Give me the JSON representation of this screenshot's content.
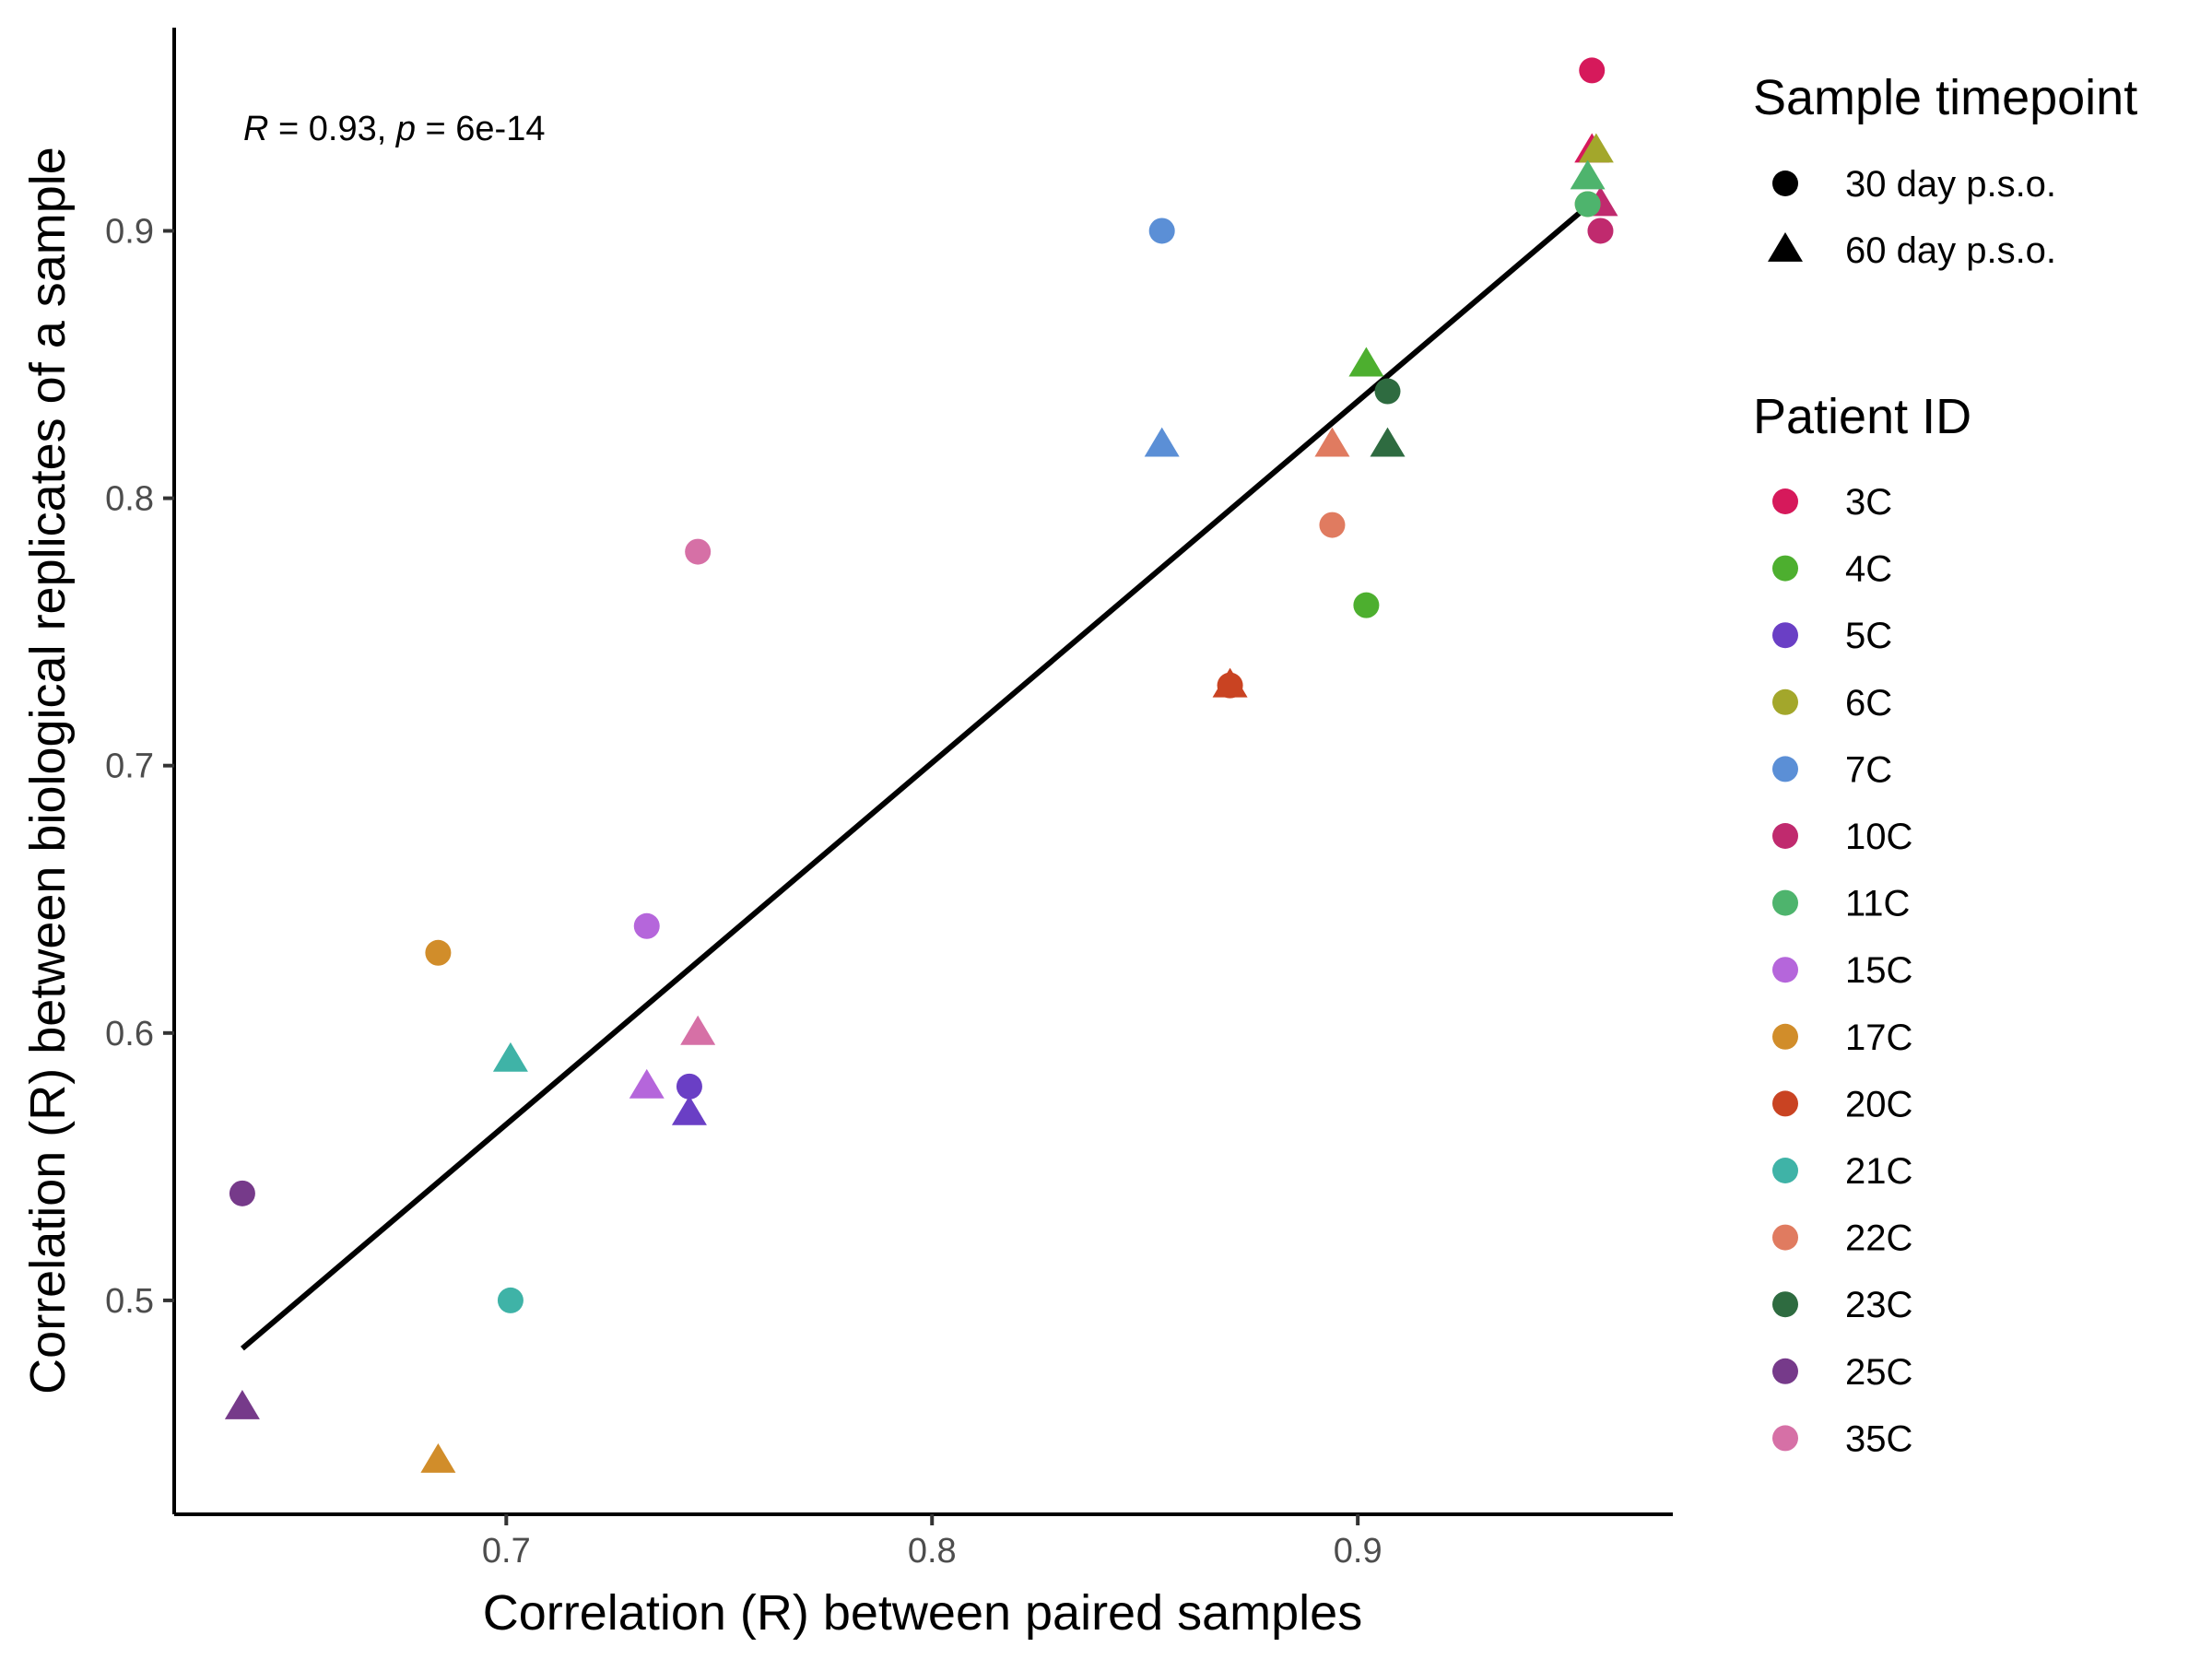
{
  "chart_data": {
    "type": "scatter",
    "title": "",
    "xlabel": "Correlation (R) between paired samples",
    "ylabel": "Correlation (R) between biological replicates of a sample",
    "xlim": [
      0.622,
      0.974
    ],
    "ylim": [
      0.42,
      0.976
    ],
    "x_ticks": [
      0.7,
      0.8,
      0.9
    ],
    "x_tick_labels": [
      "0.7",
      "0.8",
      "0.9"
    ],
    "y_ticks": [
      0.5,
      0.6,
      0.7,
      0.8,
      0.9
    ],
    "y_tick_labels": [
      "0.5",
      "0.6",
      "0.7",
      "0.8",
      "0.9"
    ],
    "grid": false,
    "legend_position": "right",
    "annotation": {
      "r_symbol": "R",
      "r_text": " = 0.93, ",
      "p_symbol": "p",
      "p_text": " = 6e-14"
    },
    "regression_line": {
      "x": [
        0.638,
        0.956
      ],
      "y": [
        0.482,
        0.912
      ]
    },
    "shape_legend": {
      "title": "Sample timepoint",
      "items": [
        {
          "label": "30 day p.s.o.",
          "shape": "circle"
        },
        {
          "label": "60 day p.s.o.",
          "shape": "triangle"
        }
      ]
    },
    "color_legend": {
      "title": "Patient ID",
      "items": [
        {
          "label": "3C",
          "color": "#D6195B"
        },
        {
          "label": "4C",
          "color": "#4DAF2F"
        },
        {
          "label": "5C",
          "color": "#6A3FC5"
        },
        {
          "label": "6C",
          "color": "#A3A72B"
        },
        {
          "label": "7C",
          "color": "#5B8FD6"
        },
        {
          "label": "10C",
          "color": "#C02A6E"
        },
        {
          "label": "11C",
          "color": "#4EB46D"
        },
        {
          "label": "15C",
          "color": "#B566DB"
        },
        {
          "label": "17C",
          "color": "#D18D2A"
        },
        {
          "label": "20C",
          "color": "#C94322"
        },
        {
          "label": "21C",
          "color": "#3FB3A7"
        },
        {
          "label": "22C",
          "color": "#E07B60"
        },
        {
          "label": "23C",
          "color": "#2E6B40"
        },
        {
          "label": "25C",
          "color": "#763A8A"
        },
        {
          "label": "35C",
          "color": "#D670A6"
        }
      ]
    },
    "series": [
      {
        "patient": "3C",
        "x": [
          0.955,
          0.955
        ],
        "y": [
          0.96,
          0.93
        ],
        "timepoint": [
          "30 day p.s.o.",
          "60 day p.s.o."
        ]
      },
      {
        "patient": "4C",
        "x": [
          0.902,
          0.902
        ],
        "y": [
          0.76,
          0.85
        ],
        "timepoint": [
          "30 day p.s.o.",
          "60 day p.s.o."
        ]
      },
      {
        "patient": "5C",
        "x": [
          0.743,
          0.743
        ],
        "y": [
          0.58,
          0.57
        ],
        "timepoint": [
          "30 day p.s.o.",
          "60 day p.s.o."
        ]
      },
      {
        "patient": "6C",
        "x": [
          0.954,
          0.956
        ],
        "y": [
          0.91,
          0.93
        ],
        "timepoint": [
          "30 day p.s.o.",
          "60 day p.s.o."
        ]
      },
      {
        "patient": "7C",
        "x": [
          0.854,
          0.854
        ],
        "y": [
          0.9,
          0.82
        ],
        "timepoint": [
          "30 day p.s.o.",
          "60 day p.s.o."
        ]
      },
      {
        "patient": "10C",
        "x": [
          0.957,
          0.957
        ],
        "y": [
          0.9,
          0.91
        ],
        "timepoint": [
          "30 day p.s.o.",
          "60 day p.s.o."
        ]
      },
      {
        "patient": "11C",
        "x": [
          0.954,
          0.954
        ],
        "y": [
          0.91,
          0.92
        ],
        "timepoint": [
          "30 day p.s.o.",
          "60 day p.s.o."
        ]
      },
      {
        "patient": "15C",
        "x": [
          0.733,
          0.733
        ],
        "y": [
          0.64,
          0.58
        ],
        "timepoint": [
          "30 day p.s.o.",
          "60 day p.s.o."
        ]
      },
      {
        "patient": "17C",
        "x": [
          0.684,
          0.684
        ],
        "y": [
          0.63,
          0.44
        ],
        "timepoint": [
          "30 day p.s.o.",
          "60 day p.s.o."
        ]
      },
      {
        "patient": "20C",
        "x": [
          0.87,
          0.87
        ],
        "y": [
          0.73,
          0.73
        ],
        "timepoint": [
          "30 day p.s.o.",
          "60 day p.s.o."
        ]
      },
      {
        "patient": "21C",
        "x": [
          0.701,
          0.701
        ],
        "y": [
          0.5,
          0.59
        ],
        "timepoint": [
          "30 day p.s.o.",
          "60 day p.s.o."
        ]
      },
      {
        "patient": "22C",
        "x": [
          0.894,
          0.894
        ],
        "y": [
          0.79,
          0.82
        ],
        "timepoint": [
          "30 day p.s.o.",
          "60 day p.s.o."
        ]
      },
      {
        "patient": "23C",
        "x": [
          0.907,
          0.907
        ],
        "y": [
          0.84,
          0.82
        ],
        "timepoint": [
          "30 day p.s.o.",
          "60 day p.s.o."
        ]
      },
      {
        "patient": "25C",
        "x": [
          0.638,
          0.638
        ],
        "y": [
          0.54,
          0.46
        ],
        "timepoint": [
          "30 day p.s.o.",
          "60 day p.s.o."
        ]
      },
      {
        "patient": "35C",
        "x": [
          0.745,
          0.745
        ],
        "y": [
          0.78,
          0.6
        ],
        "timepoint": [
          "30 day p.s.o.",
          "60 day p.s.o."
        ]
      }
    ]
  }
}
